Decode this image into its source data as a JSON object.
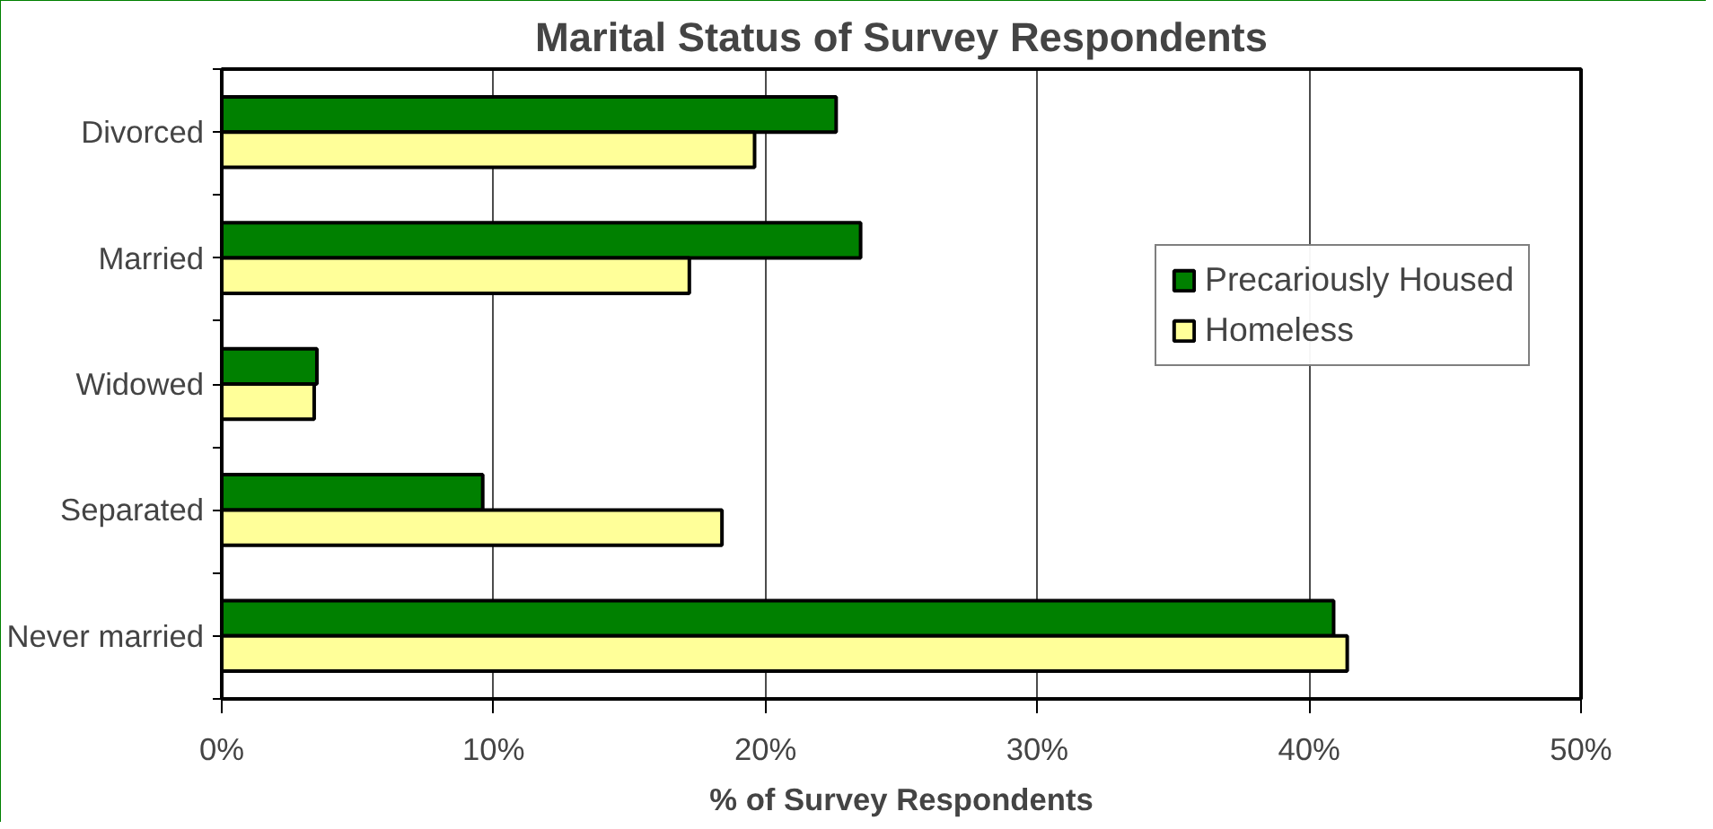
{
  "chart_data": {
    "type": "bar",
    "orientation": "horizontal",
    "title": "Marital Status of Survey Respondents",
    "xlabel": "% of Survey Respondents",
    "categories": [
      "Divorced",
      "Married",
      "Widowed",
      "Separated",
      "Never married"
    ],
    "series": [
      {
        "name": "Precariously Housed",
        "color": "#008000",
        "values": [
          22.6,
          23.5,
          3.5,
          9.6,
          40.9
        ]
      },
      {
        "name": "Homeless",
        "color": "#ffff99",
        "values": [
          19.6,
          17.2,
          3.4,
          18.4,
          41.4
        ]
      }
    ],
    "xlim": [
      0,
      50
    ],
    "xticks": [
      {
        "value": 0,
        "label": "0%"
      },
      {
        "value": 10,
        "label": "10%"
      },
      {
        "value": 20,
        "label": "20%"
      },
      {
        "value": 30,
        "label": "30%"
      },
      {
        "value": 40,
        "label": "40%"
      },
      {
        "value": 50,
        "label": "50%"
      }
    ],
    "grid": "x",
    "legend": "right"
  }
}
